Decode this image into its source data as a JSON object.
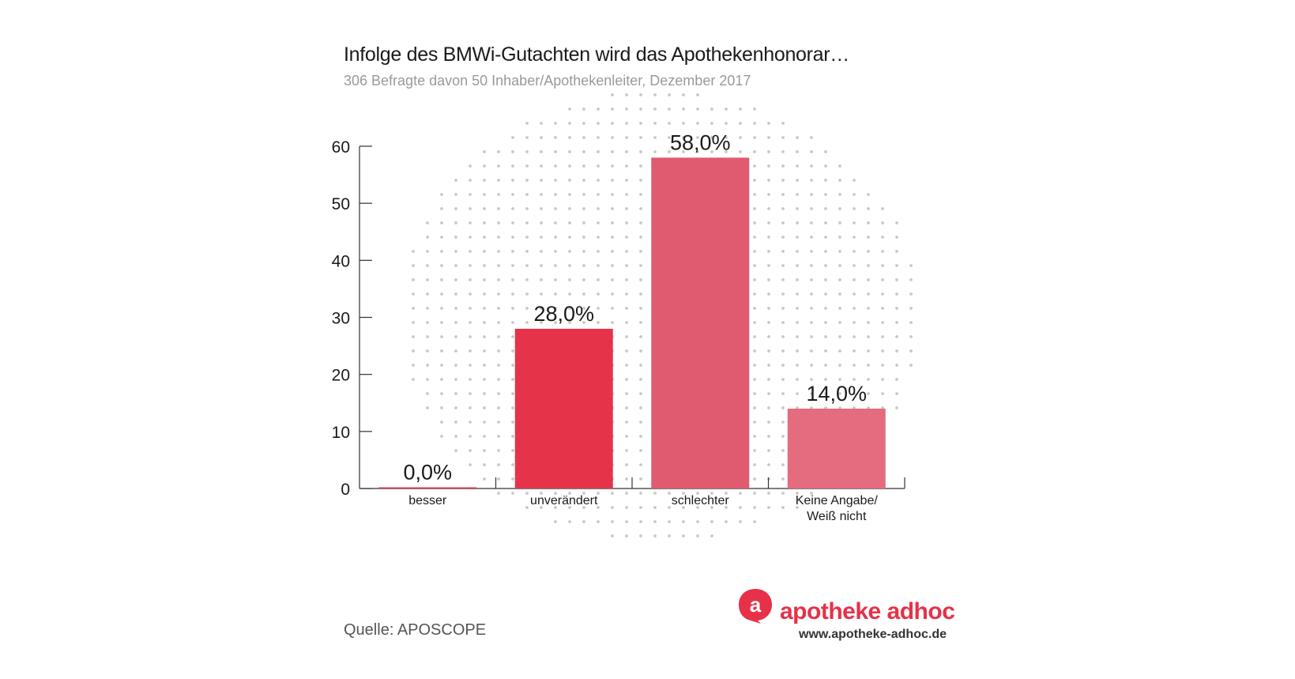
{
  "header": {
    "title": "Infolge des BMWi-Gutachten wird das Apothekenhonorar…",
    "subtitle": "306 Befragte davon 50 Inhaber/Apothekenleiter, Dezember 2017"
  },
  "footer": {
    "source": "Quelle: APOSCOPE",
    "brand": "apotheke adhoc",
    "url": "www.apotheke-adhoc.de"
  },
  "colors": {
    "bar_unveraendert": "#e5334a",
    "bar_schlechter": "#e05a70",
    "bar_keine": "#e56b7e",
    "brand": "#e63148",
    "dots": "#c8c8c8"
  },
  "chart_data": {
    "type": "bar",
    "categories": [
      [
        "besser"
      ],
      [
        "unverändert"
      ],
      [
        "schlechter"
      ],
      [
        "Keine Angabe/",
        "Weiß nicht"
      ]
    ],
    "values": [
      0.0,
      28.0,
      58.0,
      14.0
    ],
    "data_labels": [
      "0,0%",
      "28,0%",
      "58,0%",
      "14,0%"
    ],
    "ylim": [
      0,
      60
    ],
    "yticks": [
      0,
      10,
      20,
      30,
      40,
      50,
      60
    ],
    "grid": false,
    "xlabel": "",
    "ylabel": ""
  }
}
